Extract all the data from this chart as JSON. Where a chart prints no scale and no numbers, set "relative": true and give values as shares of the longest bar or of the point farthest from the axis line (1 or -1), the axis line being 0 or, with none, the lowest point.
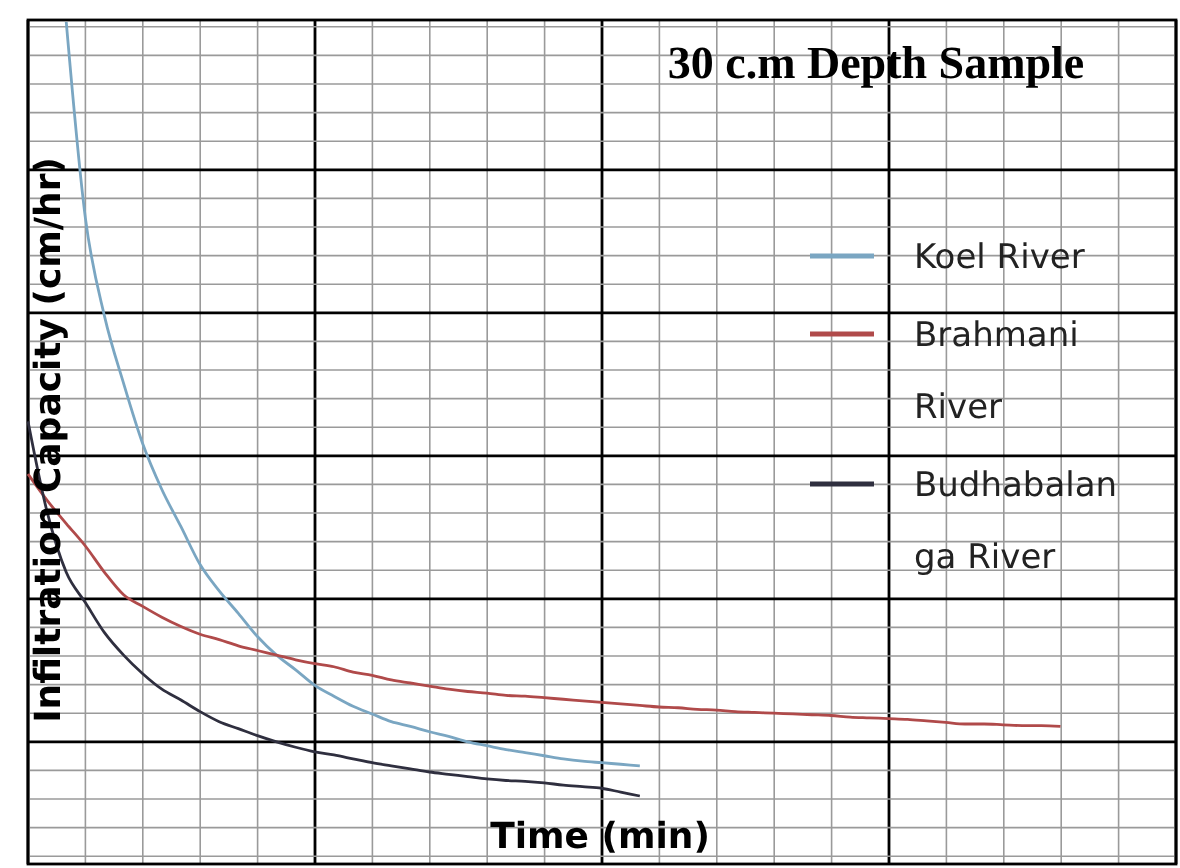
{
  "chart_data": {
    "type": "line",
    "title": "30 c.m Depth Sample",
    "xlabel": "Time (min)",
    "ylabel": "Infiltration Capacity (cm/hr)",
    "relative": true,
    "grid": true,
    "legend": "right",
    "categories": [
      null,
      null,
      null,
      null,
      null,
      null,
      null,
      null,
      null,
      null,
      null,
      null,
      null,
      null,
      null,
      null,
      null,
      null,
      null,
      null,
      null,
      null,
      null,
      null,
      null,
      null,
      null,
      null,
      null,
      null,
      null,
      null,
      null,
      null,
      null,
      null,
      null,
      null,
      null,
      null,
      null,
      null,
      null,
      null,
      null,
      null,
      null,
      null,
      null,
      null,
      null,
      null,
      null,
      null,
      null,
      null,
      null,
      null,
      null,
      null
    ],
    "series": [
      {
        "name": "Koel River",
        "color": "#7aa6c2",
        "values": [
          null,
          null,
          1.0,
          0.747,
          0.62,
          0.533,
          0.455,
          0.396,
          0.348,
          0.299,
          0.265,
          0.236,
          0.206,
          0.182,
          0.163,
          0.143,
          0.129,
          0.116,
          0.106,
          0.096,
          0.09,
          0.083,
          0.077,
          0.07,
          0.065,
          0.06,
          0.056,
          0.052,
          0.048,
          0.045,
          0.043,
          0.041,
          0.039,
          null,
          null,
          null,
          null,
          null,
          null,
          null,
          null,
          null,
          null,
          null,
          null,
          null,
          null,
          null,
          null,
          null,
          null,
          null,
          null,
          null,
          null,
          null,
          null,
          null,
          null,
          null
        ]
      },
      {
        "name": "Brahmani River",
        "color": "#b04a4a",
        "values": [
          0.416,
          0.382,
          0.352,
          0.323,
          0.289,
          0.26,
          0.245,
          0.231,
          0.219,
          0.209,
          0.202,
          0.194,
          0.188,
          0.182,
          0.176,
          0.171,
          0.167,
          0.16,
          0.156,
          0.15,
          0.146,
          0.142,
          0.138,
          0.135,
          0.133,
          0.13,
          0.129,
          0.127,
          0.125,
          0.123,
          0.121,
          0.119,
          0.117,
          0.115,
          0.114,
          0.112,
          0.111,
          0.109,
          0.108,
          0.107,
          0.106,
          0.105,
          0.104,
          0.102,
          0.101,
          0.1,
          0.099,
          0.097,
          0.095,
          0.093,
          0.093,
          0.092,
          0.091,
          0.091,
          0.09,
          null,
          null,
          null,
          null,
          null
        ]
      },
      {
        "name": "Budhabalanga River",
        "color": "#2f2f3f",
        "values": [
          0.484,
          0.367,
          0.289,
          0.25,
          0.211,
          0.182,
          0.158,
          0.138,
          0.124,
          0.109,
          0.096,
          0.087,
          0.078,
          0.07,
          0.063,
          0.057,
          0.053,
          0.048,
          0.043,
          0.039,
          0.035,
          0.031,
          0.028,
          0.025,
          0.022,
          0.02,
          0.019,
          0.017,
          0.014,
          0.012,
          0.01,
          0.005,
          0,
          null,
          null,
          null,
          null,
          null,
          null,
          null,
          null,
          null,
          null,
          null,
          null,
          null,
          null,
          null,
          null,
          null,
          null,
          null,
          null,
          null,
          null,
          null,
          null,
          null,
          null,
          null
        ]
      }
    ]
  }
}
